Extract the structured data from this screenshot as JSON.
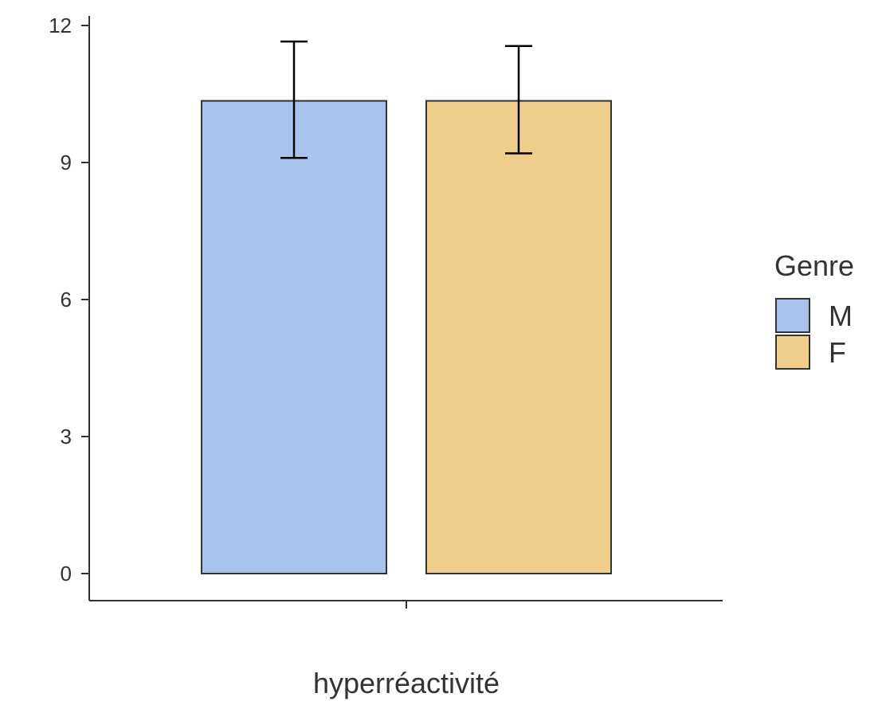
{
  "chart_data": {
    "type": "bar",
    "categories": [
      "hyperréactivité"
    ],
    "xlabel": "hyperréactivité",
    "ylabel": "",
    "ylim": [
      -0.6,
      12.1
    ],
    "yticks": [
      0,
      3,
      6,
      9,
      12
    ],
    "grid": false,
    "legend": {
      "title": "Genre",
      "placement": "right"
    },
    "series": [
      {
        "name": "M",
        "values": [
          10.35
        ],
        "error_low": [
          9.1
        ],
        "error_high": [
          11.65
        ],
        "color": "#a8c4ed"
      },
      {
        "name": "F",
        "values": [
          10.35
        ],
        "error_low": [
          9.2
        ],
        "error_high": [
          11.55
        ],
        "color": "#efcd8a"
      }
    ],
    "colors": {
      "bar_stroke": "#333333",
      "axis": "#333333",
      "error_bar": "#000000"
    }
  }
}
